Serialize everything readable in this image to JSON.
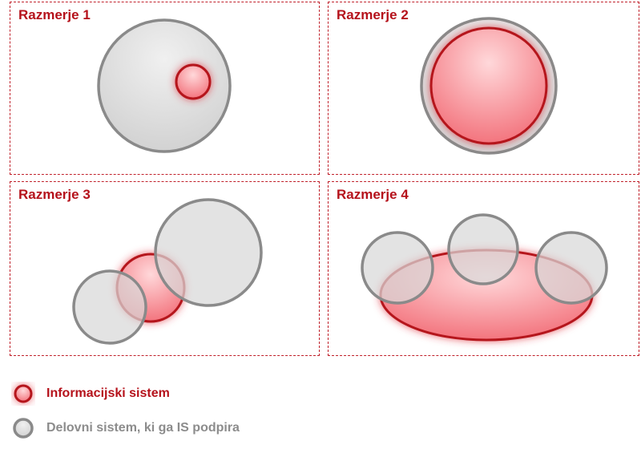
{
  "panels": [
    {
      "title": "Razmerje 1"
    },
    {
      "title": "Razmerje 2"
    },
    {
      "title": "Razmerje 3"
    },
    {
      "title": "Razmerje 4"
    }
  ],
  "legend": {
    "information_system": "Informacijski sistem",
    "work_system": "Delovni sistem, ki ga IS podpira"
  },
  "colors": {
    "red": "#b5121b",
    "gray": "#8c8c8c"
  }
}
